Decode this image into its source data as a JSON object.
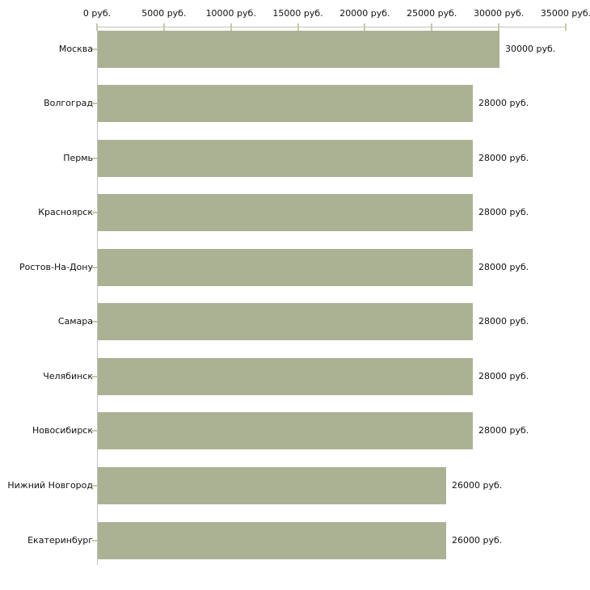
{
  "chart_data": {
    "type": "bar",
    "orientation": "horizontal",
    "title": "",
    "xlabel": "",
    "ylabel": "",
    "xlim": [
      0,
      35000
    ],
    "grid": false,
    "legend": false,
    "categories": [
      "Москва",
      "Волгоград",
      "Пермь",
      "Красноярск",
      "Ростов-На-Дону",
      "Самара",
      "Челябинск",
      "Новосибирск",
      "Нижний Новгород",
      "Екатеринбург"
    ],
    "values": [
      30000,
      28000,
      28000,
      28000,
      28000,
      28000,
      28000,
      28000,
      26000,
      26000
    ],
    "value_labels": [
      "30000 руб.",
      "28000 руб.",
      "28000 руб.",
      "28000 руб.",
      "28000 руб.",
      "28000 руб.",
      "28000 руб.",
      "28000 руб.",
      "26000 руб.",
      "26000 руб."
    ],
    "x_ticks": [
      0,
      5000,
      10000,
      15000,
      20000,
      25000,
      30000,
      35000
    ],
    "x_tick_labels": [
      "0 руб.",
      "5000 руб.",
      "10000 руб.",
      "15000 руб.",
      "20000 руб.",
      "25000 руб.",
      "30000 руб.",
      "35000 руб."
    ],
    "colors": {
      "bar": "#abb294",
      "axis": "#c2c2c2",
      "tick": "#c9c99c",
      "text": "#111111",
      "background": "#ffffff"
    }
  }
}
